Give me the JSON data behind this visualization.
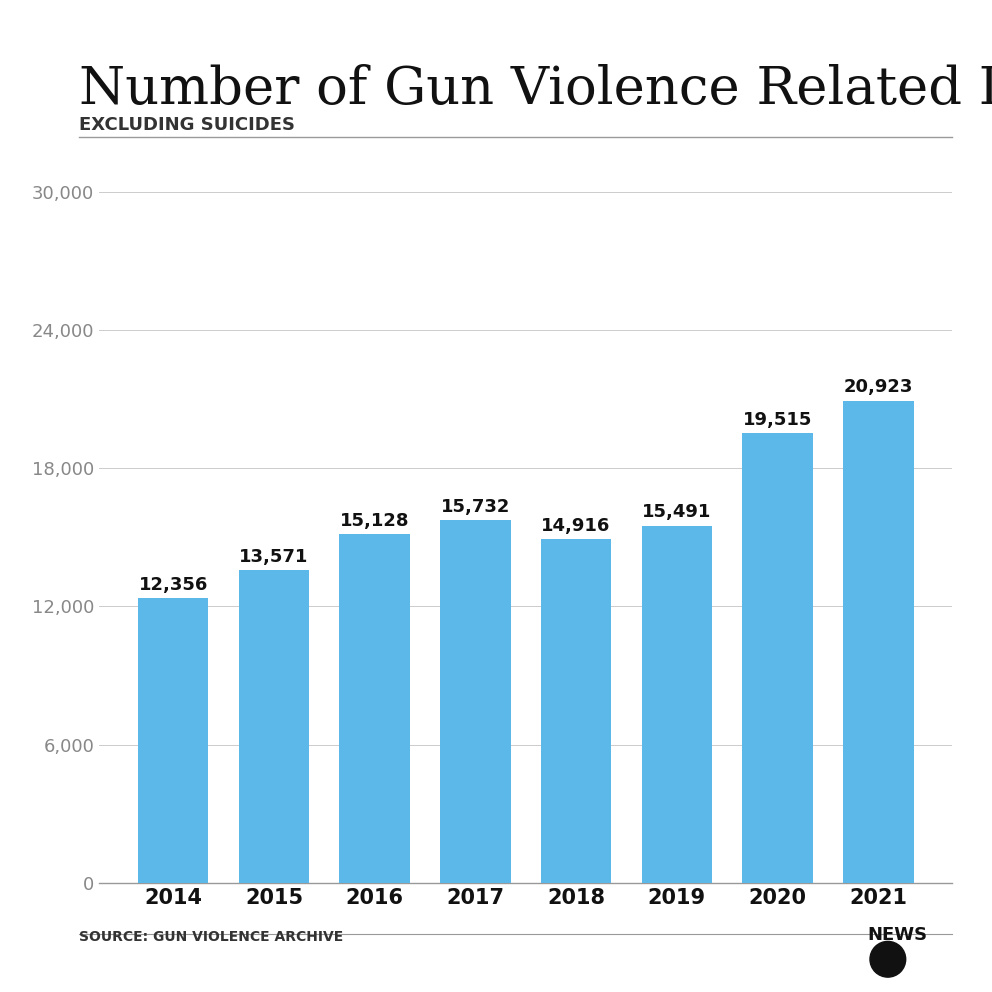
{
  "title": "Number of Gun Violence Related Deaths",
  "subtitle": "EXCLUDING SUICIDES",
  "source": "SOURCE: GUN VIOLENCE ARCHIVE",
  "years": [
    "2014",
    "2015",
    "2016",
    "2017",
    "2018",
    "2019",
    "2020",
    "2021"
  ],
  "values": [
    12356,
    13571,
    15128,
    15732,
    14916,
    15491,
    19515,
    20923
  ],
  "labels": [
    "12,356",
    "13,571",
    "15,128",
    "15,732",
    "14,916",
    "15,491",
    "19,515",
    "20,923"
  ],
  "bar_color": "#5BB8E8",
  "background_color": "#FFFFFF",
  "ylim": [
    0,
    31000
  ],
  "yticks": [
    0,
    6000,
    12000,
    18000,
    24000,
    30000
  ],
  "ytick_labels": [
    "0",
    "6,000",
    "12,000",
    "18,000",
    "24,000",
    "30,000"
  ],
  "title_fontsize": 38,
  "subtitle_fontsize": 13,
  "label_fontsize": 13,
  "tick_fontsize": 13,
  "source_fontsize": 10
}
